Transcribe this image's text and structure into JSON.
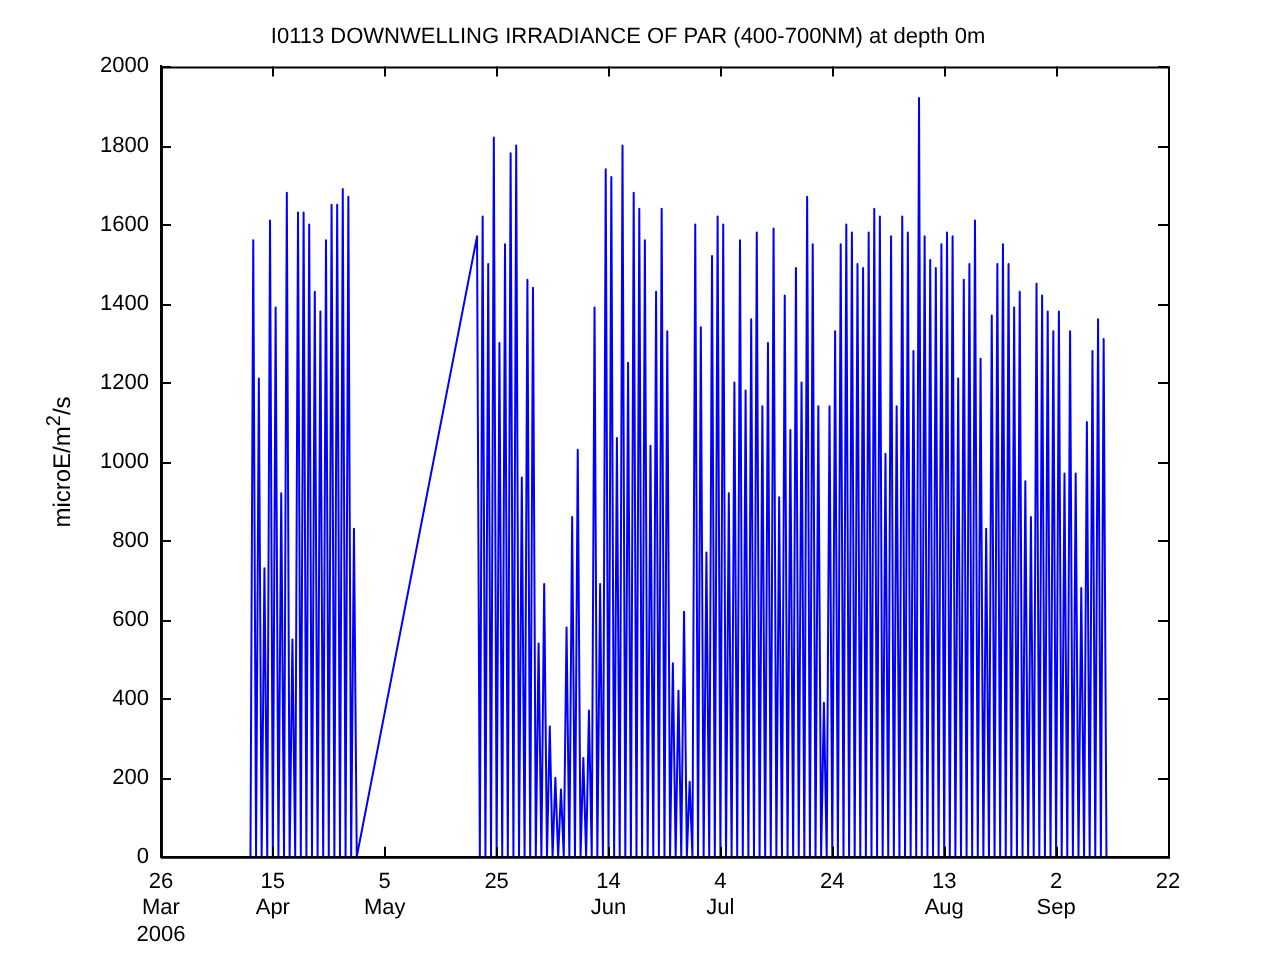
{
  "chart_data": {
    "type": "line",
    "title": "I0113 DOWNWELLING IRRADIANCE OF PAR (400-700NM) at depth 0m",
    "ylabel": "microE/m$^{2}$/s",
    "grid": false,
    "legend": false,
    "marker": "none",
    "line_style": "solid",
    "xlim": [
      "2006-03-26",
      "2006-09-22"
    ],
    "xticks": [
      {
        "value": "2006-03-26",
        "label": "26\nMar\n2006"
      },
      {
        "value": "2006-04-15",
        "label": "15\nApr"
      },
      {
        "value": "2006-05-05",
        "label": "5\nMay"
      },
      {
        "value": "2006-05-25",
        "label": "25"
      },
      {
        "value": "2006-06-14",
        "label": "14\nJun"
      },
      {
        "value": "2006-07-04",
        "label": "4\nJul"
      },
      {
        "value": "2006-07-24",
        "label": "24"
      },
      {
        "value": "2006-08-13",
        "label": "13\nAug"
      },
      {
        "value": "2006-09-02",
        "label": "2\nSep"
      },
      {
        "value": "2006-09-22",
        "label": "22"
      }
    ],
    "ylim": [
      0,
      2000
    ],
    "yticks": [
      0,
      200,
      400,
      600,
      800,
      1000,
      1200,
      1400,
      1600,
      1800,
      2000
    ],
    "series": [
      {
        "color": "#0000ff",
        "x": [
          "2006-04-11",
          "2006-04-11T12:00",
          "2006-04-12",
          "2006-04-12T12:00",
          "2006-04-13",
          "2006-04-13T12:00",
          "2006-04-14",
          "2006-04-14T12:00",
          "2006-04-15",
          "2006-04-15T12:00",
          "2006-04-16",
          "2006-04-16T12:00",
          "2006-04-17",
          "2006-04-17T12:00",
          "2006-04-18",
          "2006-04-18T12:00",
          "2006-04-19",
          "2006-04-19T12:00",
          "2006-04-20",
          "2006-04-20T12:00",
          "2006-04-21",
          "2006-04-21T12:00",
          "2006-04-22",
          "2006-04-22T12:00",
          "2006-04-23",
          "2006-04-23T12:00",
          "2006-04-24",
          "2006-04-24T12:00",
          "2006-04-25",
          "2006-04-25T12:00",
          "2006-04-26",
          "2006-04-26T12:00",
          "2006-04-27",
          "2006-04-27T12:00",
          "2006-04-28",
          "2006-04-28T12:00",
          "2006-04-29",
          "2006-04-29T12:00",
          "2006-04-30",
          "2006-05-21T12:00",
          "2006-05-22",
          "2006-05-22T12:00",
          "2006-05-23",
          "2006-05-23T12:00",
          "2006-05-24",
          "2006-05-24T12:00",
          "2006-05-25",
          "2006-05-25T12:00",
          "2006-05-26",
          "2006-05-26T12:00",
          "2006-05-27",
          "2006-05-27T12:00",
          "2006-05-28",
          "2006-05-28T12:00",
          "2006-05-29",
          "2006-05-29T12:00",
          "2006-05-30",
          "2006-05-30T12:00",
          "2006-05-31",
          "2006-05-31T12:00",
          "2006-06-01",
          "2006-06-01T12:00",
          "2006-06-02",
          "2006-06-02T12:00",
          "2006-06-03",
          "2006-06-03T12:00",
          "2006-06-04",
          "2006-06-04T12:00",
          "2006-06-05",
          "2006-06-05T12:00",
          "2006-06-06",
          "2006-06-06T12:00",
          "2006-06-07",
          "2006-06-07T12:00",
          "2006-06-08",
          "2006-06-08T12:00",
          "2006-06-09",
          "2006-06-09T12:00",
          "2006-06-10",
          "2006-06-10T12:00",
          "2006-06-11",
          "2006-06-11T12:00",
          "2006-06-12",
          "2006-06-12T12:00",
          "2006-06-13",
          "2006-06-13T12:00",
          "2006-06-14",
          "2006-06-14T12:00",
          "2006-06-15",
          "2006-06-15T12:00",
          "2006-06-16",
          "2006-06-16T12:00",
          "2006-06-17",
          "2006-06-17T12:00",
          "2006-06-18",
          "2006-06-18T12:00",
          "2006-06-19",
          "2006-06-19T12:00",
          "2006-06-20",
          "2006-06-20T12:00",
          "2006-06-21",
          "2006-06-21T12:00",
          "2006-06-22",
          "2006-06-22T12:00",
          "2006-06-23",
          "2006-06-23T12:00",
          "2006-06-24",
          "2006-06-24T12:00",
          "2006-06-25",
          "2006-06-25T12:00",
          "2006-06-26",
          "2006-06-26T12:00",
          "2006-06-27",
          "2006-06-27T12:00",
          "2006-06-28",
          "2006-06-28T12:00",
          "2006-06-29",
          "2006-06-29T12:00",
          "2006-06-30",
          "2006-06-30T12:00",
          "2006-07-01",
          "2006-07-01T12:00",
          "2006-07-02",
          "2006-07-02T12:00",
          "2006-07-03",
          "2006-07-03T12:00",
          "2006-07-04",
          "2006-07-04T12:00",
          "2006-07-05",
          "2006-07-05T12:00",
          "2006-07-06",
          "2006-07-06T12:00",
          "2006-07-07",
          "2006-07-07T12:00",
          "2006-07-08",
          "2006-07-08T12:00",
          "2006-07-09",
          "2006-07-09T12:00",
          "2006-07-10",
          "2006-07-10T12:00",
          "2006-07-11",
          "2006-07-11T12:00",
          "2006-07-12",
          "2006-07-12T12:00",
          "2006-07-13",
          "2006-07-13T12:00",
          "2006-07-14",
          "2006-07-14T12:00",
          "2006-07-15",
          "2006-07-15T12:00",
          "2006-07-16",
          "2006-07-16T12:00",
          "2006-07-17",
          "2006-07-17T12:00",
          "2006-07-18",
          "2006-07-18T12:00",
          "2006-07-19",
          "2006-07-19T12:00",
          "2006-07-20",
          "2006-07-20T12:00",
          "2006-07-21",
          "2006-07-21T12:00",
          "2006-07-22",
          "2006-07-22T12:00",
          "2006-07-23",
          "2006-07-23T12:00",
          "2006-07-24",
          "2006-07-24T12:00",
          "2006-07-25",
          "2006-07-25T12:00",
          "2006-07-26",
          "2006-07-26T12:00",
          "2006-07-27",
          "2006-07-27T12:00",
          "2006-07-28",
          "2006-07-28T12:00",
          "2006-07-29",
          "2006-07-29T12:00",
          "2006-07-30",
          "2006-07-30T12:00",
          "2006-07-31",
          "2006-07-31T12:00",
          "2006-08-01",
          "2006-08-01T12:00",
          "2006-08-02",
          "2006-08-02T12:00",
          "2006-08-03",
          "2006-08-03T12:00",
          "2006-08-04",
          "2006-08-04T12:00",
          "2006-08-05",
          "2006-08-05T12:00",
          "2006-08-06",
          "2006-08-06T12:00",
          "2006-08-07",
          "2006-08-07T12:00",
          "2006-08-08",
          "2006-08-08T12:00",
          "2006-08-09",
          "2006-08-09T12:00",
          "2006-08-10",
          "2006-08-10T12:00",
          "2006-08-11",
          "2006-08-11T12:00",
          "2006-08-12",
          "2006-08-12T12:00",
          "2006-08-13",
          "2006-08-13T12:00",
          "2006-08-14",
          "2006-08-14T12:00",
          "2006-08-15",
          "2006-08-15T12:00",
          "2006-08-16",
          "2006-08-16T12:00",
          "2006-08-17",
          "2006-08-17T12:00",
          "2006-08-18",
          "2006-08-18T12:00",
          "2006-08-19",
          "2006-08-19T12:00",
          "2006-08-20",
          "2006-08-20T12:00",
          "2006-08-21",
          "2006-08-21T12:00",
          "2006-08-22",
          "2006-08-22T12:00",
          "2006-08-23",
          "2006-08-23T12:00",
          "2006-08-24",
          "2006-08-24T12:00",
          "2006-08-25",
          "2006-08-25T12:00",
          "2006-08-26",
          "2006-08-26T12:00",
          "2006-08-27",
          "2006-08-27T12:00",
          "2006-08-28",
          "2006-08-28T12:00",
          "2006-08-29",
          "2006-08-29T12:00",
          "2006-08-30",
          "2006-08-30T12:00",
          "2006-08-31",
          "2006-08-31T12:00",
          "2006-09-01",
          "2006-09-01T12:00",
          "2006-09-02",
          "2006-09-02T12:00",
          "2006-09-03",
          "2006-09-03T12:00",
          "2006-09-04",
          "2006-09-04T12:00",
          "2006-09-05",
          "2006-09-05T12:00",
          "2006-09-06",
          "2006-09-06T12:00",
          "2006-09-07",
          "2006-09-07T12:00",
          "2006-09-08",
          "2006-09-08T12:00",
          "2006-09-09",
          "2006-09-09T12:00",
          "2006-09-10",
          "2006-09-10T12:00",
          "2006-09-11"
        ],
        "values": [
          0,
          1560,
          0,
          1210,
          0,
          730,
          0,
          1610,
          0,
          1390,
          0,
          920,
          0,
          1680,
          0,
          550,
          0,
          1630,
          0,
          1630,
          0,
          1600,
          0,
          1430,
          0,
          1380,
          0,
          1560,
          0,
          1650,
          0,
          1650,
          0,
          1690,
          0,
          1670,
          0,
          830,
          0,
          1570,
          0,
          1620,
          0,
          1500,
          0,
          1820,
          0,
          1300,
          0,
          1550,
          0,
          1780,
          0,
          1800,
          0,
          960,
          0,
          1460,
          0,
          1440,
          0,
          540,
          0,
          690,
          0,
          330,
          0,
          200,
          0,
          170,
          0,
          580,
          0,
          860,
          0,
          1030,
          0,
          250,
          0,
          370,
          0,
          1390,
          0,
          690,
          0,
          1740,
          0,
          1720,
          0,
          1060,
          0,
          1800,
          0,
          1250,
          0,
          1680,
          0,
          1640,
          0,
          1560,
          0,
          1040,
          0,
          1430,
          0,
          1640,
          0,
          1330,
          0,
          490,
          0,
          420,
          0,
          620,
          0,
          190,
          0,
          1600,
          0,
          1340,
          0,
          770,
          0,
          1520,
          0,
          1620,
          0,
          1600,
          0,
          920,
          0,
          1200,
          0,
          1560,
          0,
          1180,
          0,
          1360,
          0,
          1580,
          0,
          1140,
          0,
          1300,
          0,
          1590,
          0,
          910,
          0,
          1420,
          0,
          1080,
          0,
          1490,
          0,
          1200,
          0,
          1670,
          0,
          1550,
          0,
          1140,
          0,
          390,
          0,
          1140,
          0,
          1330,
          0,
          1550,
          0,
          1600,
          0,
          1580,
          0,
          1500,
          0,
          1490,
          0,
          1580,
          0,
          1640,
          0,
          1620,
          0,
          1020,
          0,
          1570,
          0,
          1140,
          0,
          1620,
          0,
          1580,
          0,
          1280,
          0,
          1920,
          0,
          1570,
          0,
          1510,
          0,
          1490,
          0,
          1550,
          0,
          1580,
          0,
          1570,
          0,
          1210,
          0,
          1460,
          0,
          1500,
          0,
          1610,
          0,
          1260,
          0,
          830,
          0,
          1370,
          0,
          1500,
          0,
          1550,
          0,
          1500,
          0,
          1390,
          0,
          1430,
          0,
          950,
          0,
          860,
          0,
          1450,
          0,
          1420,
          0,
          1380,
          0,
          1330,
          0,
          1380,
          0,
          970,
          0,
          1330,
          0,
          970,
          0,
          680,
          0,
          1100,
          0,
          1280,
          0,
          1360,
          0,
          1310,
          0
        ]
      }
    ]
  }
}
